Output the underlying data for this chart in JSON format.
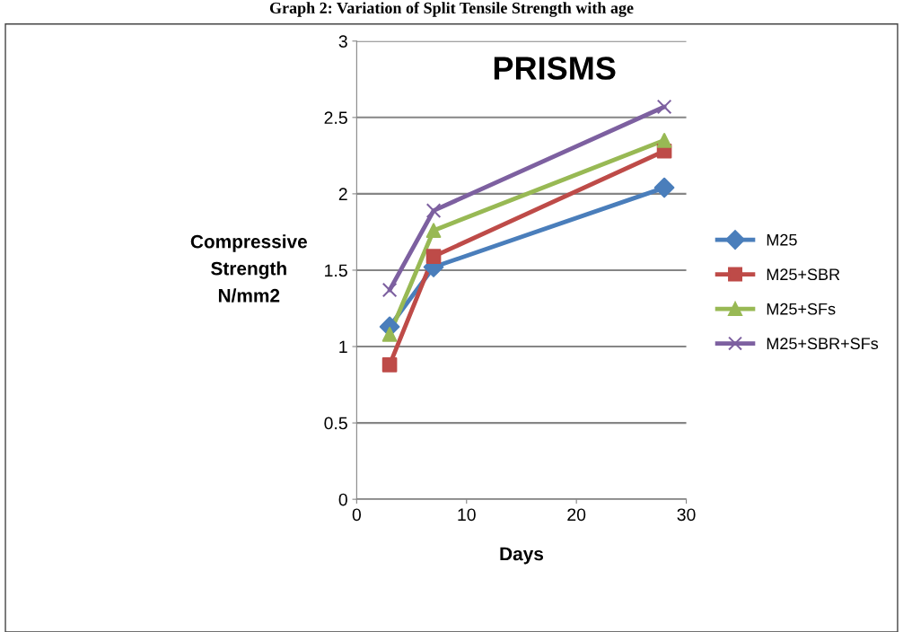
{
  "chart_data": {
    "type": "line",
    "title": "PRISMS",
    "xlabel": "Days",
    "ylabel": "Compressive\nStrength\nN/mm2",
    "annotations": [
      "Graph 2: Variation of Split Tensile Strength with age"
    ],
    "x": [
      3,
      7,
      28
    ],
    "series": [
      {
        "name": "M25",
        "color": "#4a7ebb",
        "values": [
          1.13,
          1.52,
          2.04
        ],
        "marker": "diamond"
      },
      {
        "name": "M25+SBR",
        "color": "#be4b48",
        "values": [
          0.88,
          1.59,
          2.28
        ],
        "marker": "square"
      },
      {
        "name": "M25+SFs",
        "color": "#98b954",
        "values": [
          1.08,
          1.76,
          2.35
        ],
        "marker": "triangle"
      },
      {
        "name": "M25+SBR+SFs",
        "color": "#7d60a0",
        "values": [
          1.37,
          1.89,
          2.57
        ],
        "marker": "cross"
      }
    ],
    "xlim": [
      0,
      30
    ],
    "xticks": [
      0,
      10,
      20,
      30
    ],
    "ylim": [
      0,
      3
    ],
    "yticks": [
      0,
      0.5,
      1,
      1.5,
      2,
      2.5,
      3
    ],
    "grid": "y",
    "legend": "right",
    "line_style": "solid"
  }
}
